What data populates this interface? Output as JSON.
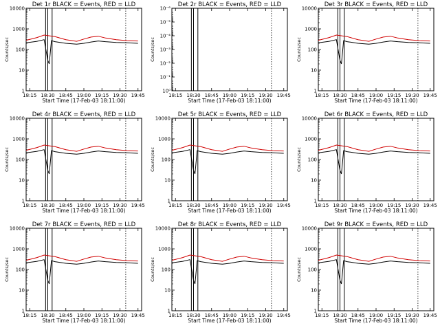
{
  "chart_data": [
    {
      "type": "line",
      "title": "Det 1r BLACK = Events, RED = LLD",
      "xlabel": "Start Time (17-Feb-03 18:11:00)",
      "ylabel": "Counts/sec",
      "yscale": "log",
      "ylim": [
        1,
        10000
      ],
      "x_ticks": [
        "18:15",
        "18:30",
        "18:45",
        "19:00",
        "19:15",
        "19:30",
        "19:45"
      ],
      "y_ticks": [
        "1",
        "10",
        "100",
        "1000",
        "10000"
      ],
      "series": [
        {
          "color": "#000000",
          "x": [
            18.2,
            18.35,
            18.45,
            18.5,
            18.52,
            18.55,
            18.6,
            18.75,
            18.9,
            19.0,
            19.1,
            19.2,
            19.3,
            19.45,
            19.6,
            19.75
          ],
          "y": [
            210,
            250,
            300,
            30,
            20,
            270,
            240,
            200,
            180,
            200,
            230,
            260,
            240,
            220,
            210,
            200
          ]
        },
        {
          "color": "#d00000",
          "x": [
            18.2,
            18.35,
            18.45,
            18.6,
            18.75,
            18.9,
            19.0,
            19.1,
            19.2,
            19.3,
            19.45,
            19.6,
            19.75
          ],
          "y": [
            280,
            380,
            500,
            420,
            300,
            250,
            320,
            400,
            440,
            360,
            300,
            270,
            260
          ]
        }
      ]
    },
    {
      "type": "line",
      "title": "Det 2r BLACK = Events, RED = LLD",
      "xlabel": "Start Time (17-Feb-03 18:11:00)",
      "ylabel": "Counts/sec",
      "yscale": "log",
      "ylim": [
        1,
        1e-06
      ],
      "x_ticks": [
        "18:15",
        "18:30",
        "18:45",
        "19:00",
        "19:15",
        "19:30",
        "19:45"
      ],
      "y_ticks": [
        "10⁻⁶",
        "10⁻⁵",
        "10⁻⁴",
        "10⁻³",
        "10⁻²",
        "10⁻¹",
        "10⁰"
      ],
      "series": []
    },
    {
      "type": "line",
      "title": "Det 3r BLACK = Events, RED = LLD",
      "xlabel": "Start Time (17-Feb-03 18:11:00)",
      "ylabel": "Counts/sec",
      "yscale": "log",
      "ylim": [
        1,
        10000
      ],
      "x_ticks": [
        "18:15",
        "18:30",
        "18:45",
        "19:00",
        "19:15",
        "19:30",
        "19:45"
      ],
      "y_ticks": [
        "1",
        "10",
        "100",
        "1000",
        "10000"
      ],
      "series": [
        {
          "color": "#000000",
          "x": [
            18.2,
            18.35,
            18.45,
            18.5,
            18.52,
            18.55,
            18.6,
            18.75,
            18.9,
            19.0,
            19.1,
            19.2,
            19.3,
            19.45,
            19.6,
            19.75
          ],
          "y": [
            210,
            250,
            300,
            30,
            20,
            270,
            240,
            200,
            180,
            200,
            230,
            260,
            240,
            220,
            210,
            200
          ]
        },
        {
          "color": "#d00000",
          "x": [
            18.2,
            18.35,
            18.45,
            18.6,
            18.75,
            18.9,
            19.0,
            19.1,
            19.2,
            19.3,
            19.45,
            19.6,
            19.75
          ],
          "y": [
            280,
            380,
            500,
            420,
            300,
            250,
            320,
            400,
            440,
            360,
            300,
            270,
            260
          ]
        }
      ]
    },
    {
      "type": "line",
      "title": "Det 4r BLACK = Events, RED = LLD",
      "xlabel": "Start Time (17-Feb-03 18:11:00)",
      "ylabel": "Counts/sec",
      "yscale": "log",
      "ylim": [
        1,
        10000
      ],
      "x_ticks": [
        "18:15",
        "18:30",
        "18:45",
        "19:00",
        "19:15",
        "19:30",
        "19:45"
      ],
      "y_ticks": [
        "1",
        "10",
        "100",
        "1000",
        "10000"
      ],
      "series": [
        {
          "color": "#000000",
          "x": [
            18.2,
            18.35,
            18.45,
            18.5,
            18.52,
            18.55,
            18.6,
            18.75,
            18.9,
            19.0,
            19.1,
            19.2,
            19.3,
            19.45,
            19.6,
            19.75
          ],
          "y": [
            210,
            250,
            300,
            30,
            20,
            270,
            240,
            200,
            180,
            200,
            230,
            260,
            240,
            220,
            210,
            200
          ]
        },
        {
          "color": "#d00000",
          "x": [
            18.2,
            18.35,
            18.45,
            18.6,
            18.75,
            18.9,
            19.0,
            19.1,
            19.2,
            19.3,
            19.45,
            19.6,
            19.75
          ],
          "y": [
            280,
            380,
            500,
            420,
            300,
            250,
            320,
            400,
            440,
            360,
            300,
            270,
            260
          ]
        }
      ]
    },
    {
      "type": "line",
      "title": "Det 5r BLACK = Events, RED = LLD",
      "xlabel": "Start Time (17-Feb-03 18:11:00)",
      "ylabel": "Counts/sec",
      "yscale": "log",
      "ylim": [
        1,
        10000
      ],
      "x_ticks": [
        "18:15",
        "18:30",
        "18:45",
        "19:00",
        "19:15",
        "19:30",
        "19:45"
      ],
      "y_ticks": [
        "1",
        "10",
        "100",
        "1000",
        "10000"
      ],
      "series": [
        {
          "color": "#000000",
          "x": [
            18.2,
            18.35,
            18.45,
            18.5,
            18.52,
            18.55,
            18.6,
            18.75,
            18.9,
            19.0,
            19.1,
            19.2,
            19.3,
            19.45,
            19.6,
            19.75
          ],
          "y": [
            210,
            250,
            300,
            30,
            20,
            270,
            240,
            200,
            180,
            200,
            230,
            260,
            240,
            220,
            210,
            200
          ]
        },
        {
          "color": "#d00000",
          "x": [
            18.2,
            18.35,
            18.45,
            18.6,
            18.75,
            18.9,
            19.0,
            19.1,
            19.2,
            19.3,
            19.45,
            19.6,
            19.75
          ],
          "y": [
            280,
            380,
            500,
            420,
            300,
            250,
            320,
            400,
            440,
            360,
            300,
            270,
            260
          ]
        }
      ]
    },
    {
      "type": "line",
      "title": "Det 6r BLACK = Events, RED = LLD",
      "xlabel": "Start Time (17-Feb-03 18:11:00)",
      "ylabel": "Counts/sec",
      "yscale": "log",
      "ylim": [
        1,
        10000
      ],
      "x_ticks": [
        "18:15",
        "18:30",
        "18:45",
        "19:00",
        "19:15",
        "19:30",
        "19:45"
      ],
      "y_ticks": [
        "1",
        "10",
        "100",
        "1000",
        "10000"
      ],
      "series": [
        {
          "color": "#000000",
          "x": [
            18.2,
            18.35,
            18.45,
            18.5,
            18.52,
            18.55,
            18.6,
            18.75,
            18.9,
            19.0,
            19.1,
            19.2,
            19.3,
            19.45,
            19.6,
            19.75
          ],
          "y": [
            210,
            250,
            300,
            30,
            20,
            270,
            240,
            200,
            180,
            200,
            230,
            260,
            240,
            220,
            210,
            200
          ]
        },
        {
          "color": "#d00000",
          "x": [
            18.2,
            18.35,
            18.45,
            18.6,
            18.75,
            18.9,
            19.0,
            19.1,
            19.2,
            19.3,
            19.45,
            19.6,
            19.75
          ],
          "y": [
            280,
            380,
            500,
            420,
            300,
            250,
            320,
            400,
            440,
            360,
            300,
            270,
            260
          ]
        }
      ]
    },
    {
      "type": "line",
      "title": "Det 7r BLACK = Events, RED = LLD",
      "xlabel": "Start Time (17-Feb-03 18:11:00)",
      "ylabel": "Counts/sec",
      "yscale": "log",
      "ylim": [
        1,
        10000
      ],
      "x_ticks": [
        "18:15",
        "18:30",
        "18:45",
        "19:00",
        "19:15",
        "19:30",
        "19:45"
      ],
      "y_ticks": [
        "1",
        "10",
        "100",
        "1000",
        "10000"
      ],
      "series": [
        {
          "color": "#000000",
          "x": [
            18.2,
            18.35,
            18.45,
            18.5,
            18.52,
            18.55,
            18.6,
            18.75,
            18.9,
            19.0,
            19.1,
            19.2,
            19.3,
            19.45,
            19.6,
            19.75
          ],
          "y": [
            210,
            250,
            300,
            30,
            20,
            270,
            240,
            200,
            180,
            200,
            230,
            260,
            240,
            220,
            210,
            200
          ]
        },
        {
          "color": "#d00000",
          "x": [
            18.2,
            18.35,
            18.45,
            18.6,
            18.75,
            18.9,
            19.0,
            19.1,
            19.2,
            19.3,
            19.45,
            19.6,
            19.75
          ],
          "y": [
            280,
            380,
            500,
            420,
            300,
            250,
            320,
            400,
            440,
            360,
            300,
            270,
            260
          ]
        }
      ]
    },
    {
      "type": "line",
      "title": "Det 8r BLACK = Events, RED = LLD",
      "xlabel": "Start Time (17-Feb-03 18:11:00)",
      "ylabel": "Counts/sec",
      "yscale": "log",
      "ylim": [
        1,
        10000
      ],
      "x_ticks": [
        "18:15",
        "18:30",
        "18:45",
        "19:00",
        "19:15",
        "19:30",
        "19:45"
      ],
      "y_ticks": [
        "1",
        "10",
        "100",
        "1000",
        "10000"
      ],
      "series": [
        {
          "color": "#000000",
          "x": [
            18.2,
            18.35,
            18.45,
            18.5,
            18.52,
            18.55,
            18.6,
            18.75,
            18.9,
            19.0,
            19.1,
            19.2,
            19.3,
            19.45,
            19.6,
            19.75
          ],
          "y": [
            210,
            250,
            300,
            30,
            20,
            270,
            240,
            200,
            180,
            200,
            230,
            260,
            240,
            220,
            210,
            200
          ]
        },
        {
          "color": "#d00000",
          "x": [
            18.2,
            18.35,
            18.45,
            18.6,
            18.75,
            18.9,
            19.0,
            19.1,
            19.2,
            19.3,
            19.45,
            19.6,
            19.75
          ],
          "y": [
            280,
            380,
            500,
            420,
            300,
            250,
            320,
            400,
            440,
            360,
            300,
            270,
            260
          ]
        }
      ]
    },
    {
      "type": "line",
      "title": "Det 9r BLACK = Events, RED = LLD",
      "xlabel": "Start Time (17-Feb-03 18:11:00)",
      "ylabel": "Counts/sec",
      "yscale": "log",
      "ylim": [
        1,
        10000
      ],
      "x_ticks": [
        "18:15",
        "18:30",
        "18:45",
        "19:00",
        "19:15",
        "19:30",
        "19:45"
      ],
      "y_ticks": [
        "1",
        "10",
        "100",
        "1000",
        "10000"
      ],
      "series": [
        {
          "color": "#000000",
          "x": [
            18.2,
            18.35,
            18.45,
            18.5,
            18.52,
            18.55,
            18.6,
            18.75,
            18.9,
            19.0,
            19.1,
            19.2,
            19.3,
            19.45,
            19.6,
            19.75
          ],
          "y": [
            210,
            250,
            300,
            30,
            20,
            270,
            240,
            200,
            180,
            200,
            230,
            260,
            240,
            220,
            210,
            200
          ]
        },
        {
          "color": "#d00000",
          "x": [
            18.2,
            18.35,
            18.45,
            18.6,
            18.75,
            18.9,
            19.0,
            19.1,
            19.2,
            19.3,
            19.45,
            19.6,
            19.75
          ],
          "y": [
            280,
            380,
            500,
            420,
            300,
            250,
            320,
            400,
            440,
            360,
            300,
            270,
            260
          ]
        }
      ]
    }
  ]
}
